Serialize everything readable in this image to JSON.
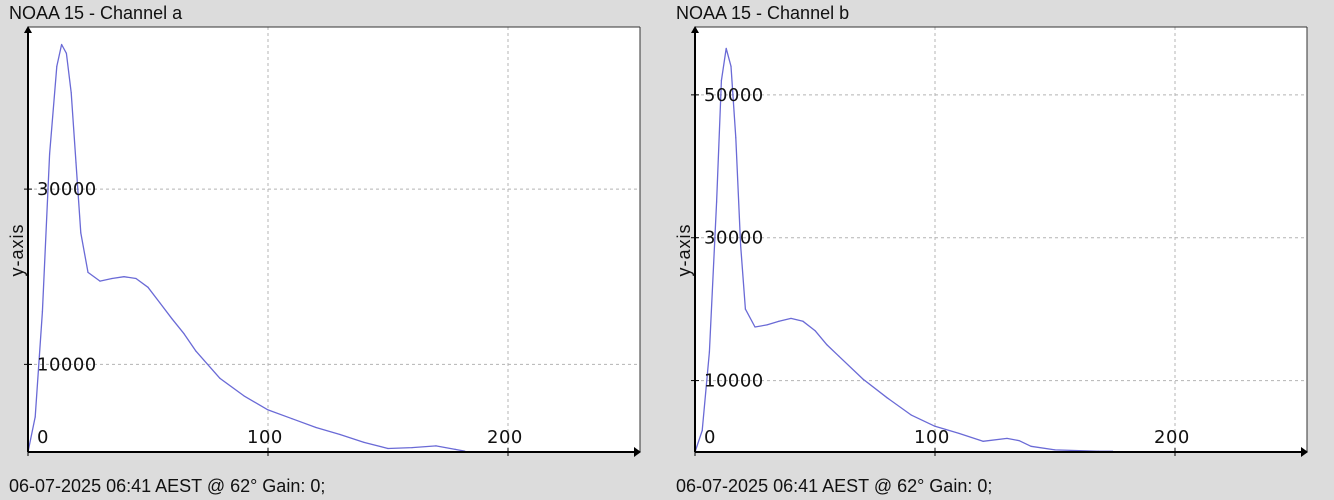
{
  "panels": [
    {
      "title": "NOAA 15 - Channel a",
      "footer": "06-07-2025 06:41 AEST @ 62° Gain: 0;",
      "ylabel": "y-axis"
    },
    {
      "title": "NOAA 15 - Channel b",
      "footer": "06-07-2025 06:41 AEST @ 62° Gain: 0;",
      "ylabel": "y-axis"
    }
  ],
  "colors": {
    "line": "#6a6ad6",
    "grid": "#b4b4b4",
    "axis": "#000000",
    "plot_bg": "#ffffff"
  },
  "chart_data": [
    {
      "type": "line",
      "title": "NOAA 15 - Channel a",
      "ylabel": "y-axis",
      "xlabel": "",
      "xlim": [
        0,
        255
      ],
      "ylim": [
        0,
        48500
      ],
      "xticks": [
        0,
        100,
        200
      ],
      "yticks": [
        10000,
        30000
      ],
      "grid": true,
      "series": [
        {
          "x": [
            0,
            3,
            6,
            9,
            12,
            14,
            16,
            18,
            20,
            22,
            25,
            30,
            35,
            40,
            45,
            50,
            55,
            60,
            65,
            70,
            80,
            90,
            100,
            110,
            120,
            130,
            140,
            150,
            160,
            170,
            178,
            182
          ],
          "y": [
            0,
            4000,
            16000,
            34000,
            44000,
            46500,
            45500,
            41000,
            33000,
            25000,
            20500,
            19500,
            19800,
            20000,
            19800,
            18800,
            17000,
            15200,
            13500,
            11500,
            8400,
            6400,
            4800,
            3800,
            2800,
            2000,
            1100,
            400,
            500,
            700,
            300,
            100
          ]
        }
      ]
    },
    {
      "type": "line",
      "title": "NOAA 15 - Channel b",
      "ylabel": "y-axis",
      "xlabel": "",
      "xlim": [
        0,
        255
      ],
      "ylim": [
        0,
        59500
      ],
      "xticks": [
        0,
        100,
        200
      ],
      "yticks": [
        10000,
        30000,
        50000
      ],
      "grid": true,
      "series": [
        {
          "x": [
            0,
            3,
            6,
            9,
            11,
            13,
            15,
            17,
            19,
            21,
            25,
            30,
            35,
            40,
            45,
            50,
            55,
            60,
            70,
            80,
            90,
            100,
            110,
            120,
            130,
            135,
            140,
            150,
            160,
            168,
            174
          ],
          "y": [
            0,
            3000,
            14000,
            35000,
            52000,
            56500,
            54000,
            44000,
            29000,
            20000,
            17500,
            17800,
            18300,
            18700,
            18300,
            17000,
            15000,
            13400,
            10200,
            7600,
            5200,
            3600,
            2600,
            1500,
            1900,
            1600,
            800,
            300,
            200,
            100,
            100
          ]
        }
      ]
    }
  ]
}
